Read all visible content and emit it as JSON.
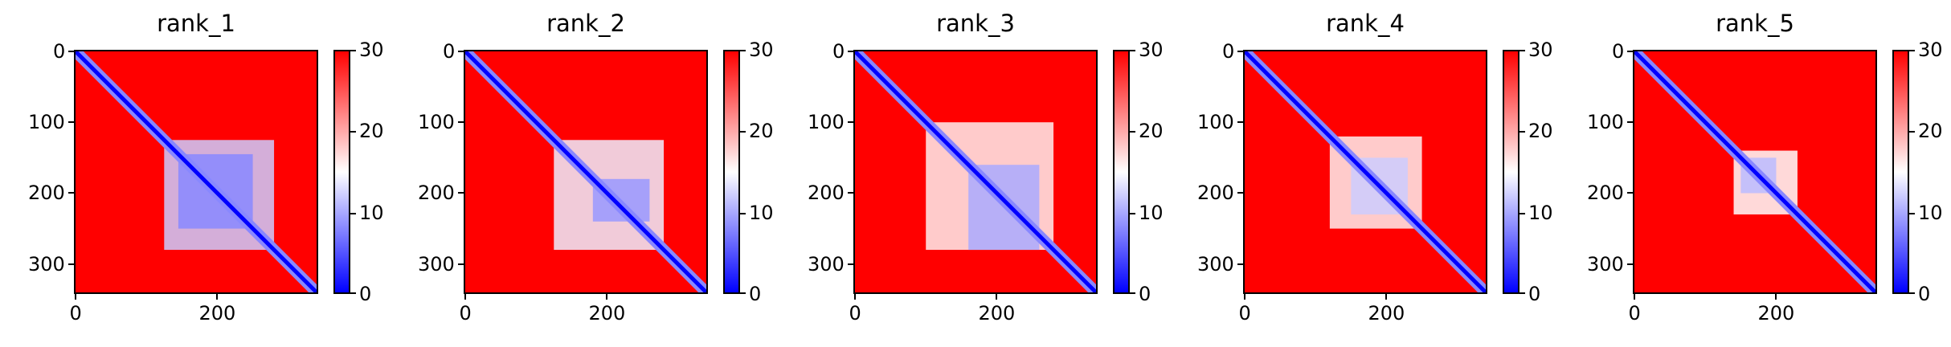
{
  "chart_data": [
    {
      "type": "heatmap",
      "title": "rank_1",
      "xlim": [
        0,
        340
      ],
      "ylim": [
        340,
        0
      ],
      "xticks": [
        0,
        200
      ],
      "yticks": [
        0,
        100,
        200,
        300
      ],
      "colorbar": {
        "ticks": [
          0,
          10,
          20,
          30
        ],
        "range": [
          0,
          30
        ],
        "colormap": "bwr"
      },
      "colors": {
        "low": "#0000ff",
        "mid": "#ffffff",
        "high": "#ff0000"
      },
      "low_blocks": [
        {
          "x": [
            125,
            280
          ],
          "y": [
            125,
            280
          ],
          "value": 12
        },
        {
          "x": [
            145,
            250
          ],
          "y": [
            145,
            250
          ],
          "value": 8
        }
      ]
    },
    {
      "type": "heatmap",
      "title": "rank_2",
      "xlim": [
        0,
        340
      ],
      "ylim": [
        340,
        0
      ],
      "xticks": [
        0,
        200
      ],
      "yticks": [
        0,
        100,
        200,
        300
      ],
      "colorbar": {
        "ticks": [
          0,
          10,
          20,
          30
        ],
        "range": [
          0,
          30
        ],
        "colormap": "bwr"
      },
      "colors": {
        "low": "#0000ff",
        "mid": "#ffffff",
        "high": "#ff0000"
      },
      "low_blocks": [
        {
          "x": [
            125,
            280
          ],
          "y": [
            125,
            280
          ],
          "value": 14
        },
        {
          "x": [
            180,
            260
          ],
          "y": [
            180,
            240
          ],
          "value": 9
        }
      ]
    },
    {
      "type": "heatmap",
      "title": "rank_3",
      "xlim": [
        0,
        340
      ],
      "ylim": [
        340,
        0
      ],
      "xticks": [
        0,
        200
      ],
      "yticks": [
        0,
        100,
        200,
        300
      ],
      "colorbar": {
        "ticks": [
          0,
          10,
          20,
          30
        ],
        "range": [
          0,
          30
        ],
        "colormap": "bwr"
      },
      "colors": {
        "low": "#0000ff",
        "mid": "#ffffff",
        "high": "#ff0000"
      },
      "low_blocks": [
        {
          "x": [
            100,
            280
          ],
          "y": [
            100,
            280
          ],
          "value": 16
        },
        {
          "x": [
            160,
            260
          ],
          "y": [
            160,
            280
          ],
          "value": 10
        }
      ]
    },
    {
      "type": "heatmap",
      "title": "rank_4",
      "xlim": [
        0,
        340
      ],
      "ylim": [
        340,
        0
      ],
      "xticks": [
        0,
        200
      ],
      "yticks": [
        0,
        100,
        200,
        300
      ],
      "colorbar": {
        "ticks": [
          0,
          10,
          20,
          30
        ],
        "range": [
          0,
          30
        ],
        "colormap": "bwr"
      },
      "colors": {
        "low": "#0000ff",
        "mid": "#ffffff",
        "high": "#ff0000"
      },
      "low_blocks": [
        {
          "x": [
            120,
            250
          ],
          "y": [
            120,
            250
          ],
          "value": 16
        },
        {
          "x": [
            150,
            230
          ],
          "y": [
            150,
            230
          ],
          "value": 12
        }
      ]
    },
    {
      "type": "heatmap",
      "title": "rank_5",
      "xlim": [
        0,
        340
      ],
      "ylim": [
        340,
        0
      ],
      "xticks": [
        0,
        200
      ],
      "yticks": [
        0,
        100,
        200,
        300
      ],
      "colorbar": {
        "ticks": [
          0,
          10,
          20,
          30
        ],
        "range": [
          0,
          30
        ],
        "colormap": "bwr"
      },
      "colors": {
        "low": "#0000ff",
        "mid": "#ffffff",
        "high": "#ff0000"
      },
      "low_blocks": [
        {
          "x": [
            140,
            230
          ],
          "y": [
            140,
            230
          ],
          "value": 15
        },
        {
          "x": [
            150,
            200
          ],
          "y": [
            150,
            200
          ],
          "value": 11
        }
      ]
    }
  ]
}
